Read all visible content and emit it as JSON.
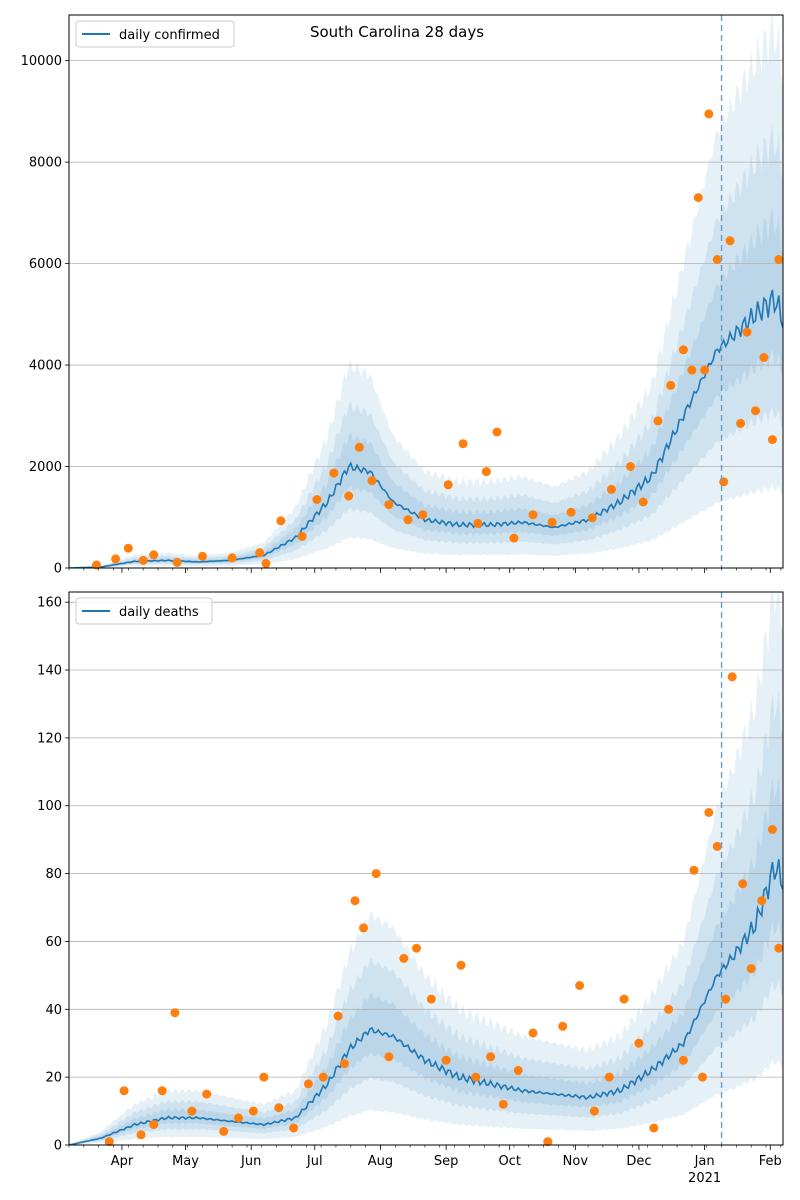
{
  "chart_data": [
    {
      "type": "line",
      "title": "South Carolina 28 days",
      "xlabel": "",
      "ylabel": "",
      "ylim": [
        0,
        10900
      ],
      "yticks": [
        0,
        2000,
        4000,
        6000,
        8000,
        10000
      ],
      "grid": "horizontal",
      "legend": "top-left",
      "series": [
        {
          "name": "daily confirmed",
          "color": "#1f77b4",
          "x": [
            "2020-03-07",
            "2020-03-22",
            "2020-04-07",
            "2020-04-22",
            "2020-05-07",
            "2020-05-22",
            "2020-06-07",
            "2020-06-22",
            "2020-07-07",
            "2020-07-17",
            "2020-07-27",
            "2020-08-07",
            "2020-08-22",
            "2020-09-07",
            "2020-09-22",
            "2020-10-07",
            "2020-10-22",
            "2020-11-07",
            "2020-11-22",
            "2020-12-07",
            "2020-12-22",
            "2021-01-07",
            "2021-01-15",
            "2021-01-25",
            "2021-02-03",
            "2021-02-07"
          ],
          "values": [
            0,
            20,
            130,
            150,
            120,
            150,
            250,
            600,
            1300,
            2000,
            1900,
            1300,
            950,
            850,
            850,
            900,
            800,
            950,
            1300,
            1800,
            3000,
            4300,
            4600,
            5000,
            5300,
            4900
          ]
        }
      ],
      "band_widths": [
        0.3,
        0.6,
        1.0
      ],
      "observed": {
        "color": "#ff7f0e",
        "x": [
          "2020-03-20",
          "2020-03-29",
          "2020-04-04",
          "2020-04-11",
          "2020-04-16",
          "2020-04-27",
          "2020-05-09",
          "2020-05-23",
          "2020-06-05",
          "2020-06-08",
          "2020-06-15",
          "2020-06-25",
          "2020-07-02",
          "2020-07-10",
          "2020-07-17",
          "2020-07-22",
          "2020-07-28",
          "2020-08-05",
          "2020-08-14",
          "2020-08-21",
          "2020-09-02",
          "2020-09-09",
          "2020-09-16",
          "2020-09-20",
          "2020-09-25",
          "2020-10-03",
          "2020-10-12",
          "2020-10-21",
          "2020-10-30",
          "2020-11-09",
          "2020-11-18",
          "2020-11-27",
          "2020-12-03",
          "2020-12-10",
          "2020-12-16",
          "2020-12-22",
          "2020-12-26",
          "2020-12-29",
          "2021-01-01",
          "2021-01-03",
          "2021-01-07",
          "2021-01-10",
          "2021-01-13",
          "2021-01-18",
          "2021-01-21",
          "2021-01-25",
          "2021-01-29",
          "2021-02-02",
          "2021-02-05"
        ],
        "values": [
          60,
          180,
          390,
          150,
          260,
          110,
          230,
          200,
          300,
          90,
          930,
          620,
          1350,
          1870,
          1420,
          2380,
          1720,
          1250,
          950,
          1050,
          1640,
          2450,
          880,
          1900,
          2680,
          590,
          1050,
          900,
          1100,
          990,
          1550,
          2000,
          1300,
          2900,
          3600,
          4300,
          3900,
          7300,
          3900,
          8950,
          6080,
          1700,
          6450,
          2850,
          4650,
          3100,
          4150,
          2530,
          6080
        ]
      }
    },
    {
      "type": "line",
      "title": "",
      "xlabel": "",
      "ylabel": "",
      "ylim": [
        0,
        163
      ],
      "yticks": [
        0,
        20,
        40,
        60,
        80,
        100,
        120,
        140,
        160
      ],
      "grid": "horizontal",
      "legend": "top-left",
      "xticks": [
        "Apr",
        "May",
        "Jun",
        "Jul",
        "Aug",
        "Sep",
        "Oct",
        "Nov",
        "Dec",
        "Jan",
        "Feb"
      ],
      "xtick_year": "2021",
      "vline": "2021-01-09",
      "series": [
        {
          "name": "daily deaths",
          "color": "#1f77b4",
          "x": [
            "2020-03-07",
            "2020-03-22",
            "2020-04-07",
            "2020-04-22",
            "2020-05-07",
            "2020-05-22",
            "2020-06-07",
            "2020-06-22",
            "2020-07-07",
            "2020-07-17",
            "2020-07-27",
            "2020-08-07",
            "2020-08-22",
            "2020-09-07",
            "2020-09-22",
            "2020-10-07",
            "2020-10-22",
            "2020-11-07",
            "2020-11-22",
            "2020-12-07",
            "2020-12-22",
            "2021-01-07",
            "2021-01-15",
            "2021-01-25",
            "2021-02-03",
            "2021-02-07"
          ],
          "values": [
            0,
            2,
            6,
            8,
            8,
            7,
            6,
            8,
            18,
            28,
            34,
            32,
            25,
            20,
            18,
            16,
            15,
            14,
            16,
            22,
            30,
            50,
            56,
            65,
            82,
            78
          ]
        }
      ],
      "band_widths": [
        0.3,
        0.6,
        1.0
      ],
      "observed": {
        "color": "#ff7f0e",
        "x": [
          "2020-03-26",
          "2020-04-02",
          "2020-04-10",
          "2020-04-16",
          "2020-04-20",
          "2020-04-26",
          "2020-05-04",
          "2020-05-11",
          "2020-05-19",
          "2020-05-26",
          "2020-06-02",
          "2020-06-07",
          "2020-06-14",
          "2020-06-21",
          "2020-06-28",
          "2020-07-05",
          "2020-07-12",
          "2020-07-15",
          "2020-07-20",
          "2020-07-24",
          "2020-07-30",
          "2020-08-05",
          "2020-08-12",
          "2020-08-18",
          "2020-08-25",
          "2020-09-01",
          "2020-09-08",
          "2020-09-15",
          "2020-09-22",
          "2020-09-28",
          "2020-10-05",
          "2020-10-12",
          "2020-10-19",
          "2020-10-26",
          "2020-11-03",
          "2020-11-10",
          "2020-11-17",
          "2020-11-24",
          "2020-12-01",
          "2020-12-08",
          "2020-12-15",
          "2020-12-22",
          "2020-12-27",
          "2020-12-31",
          "2021-01-03",
          "2021-01-07",
          "2021-01-11",
          "2021-01-14",
          "2021-01-19",
          "2021-01-23",
          "2021-01-28",
          "2021-02-02",
          "2021-02-05"
        ],
        "values": [
          1,
          16,
          3,
          6,
          16,
          39,
          10,
          15,
          4,
          8,
          10,
          20,
          11,
          5,
          18,
          20,
          38,
          24,
          72,
          64,
          80,
          26,
          55,
          58,
          43,
          25,
          53,
          20,
          26,
          12,
          22,
          33,
          1,
          35,
          47,
          10,
          20,
          43,
          30,
          5,
          40,
          25,
          81,
          20,
          98,
          88,
          43,
          138,
          77,
          52,
          72,
          93,
          58
        ]
      }
    }
  ]
}
